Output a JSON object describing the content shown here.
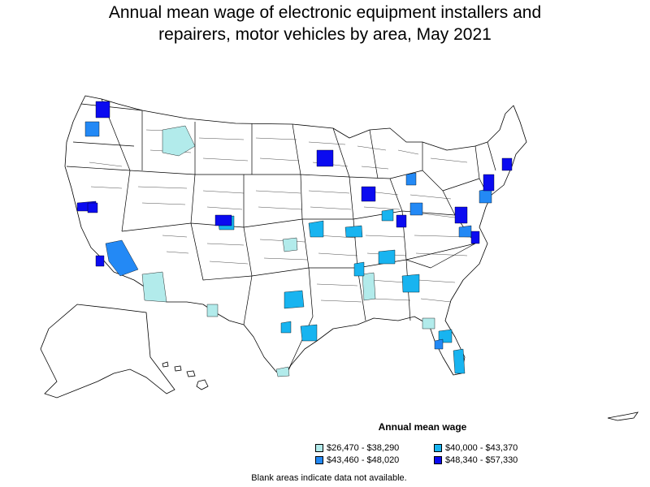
{
  "title": {
    "line1": "Annual mean wage of electronic equipment installers and",
    "line2": "repairers, motor vehicles by area, May 2021"
  },
  "legend": {
    "title": "Annual mean wage",
    "items": [
      {
        "label": "$26,470 - $38,290",
        "color": "#b2ebeb"
      },
      {
        "label": "$40,000 - $43,370",
        "color": "#18b4f0"
      },
      {
        "label": "$43,460 - $48,020",
        "color": "#2389f5"
      },
      {
        "label": "$48,340 - $57,330",
        "color": "#0b0bf0"
      }
    ]
  },
  "note": "Blank areas indicate data not available."
}
